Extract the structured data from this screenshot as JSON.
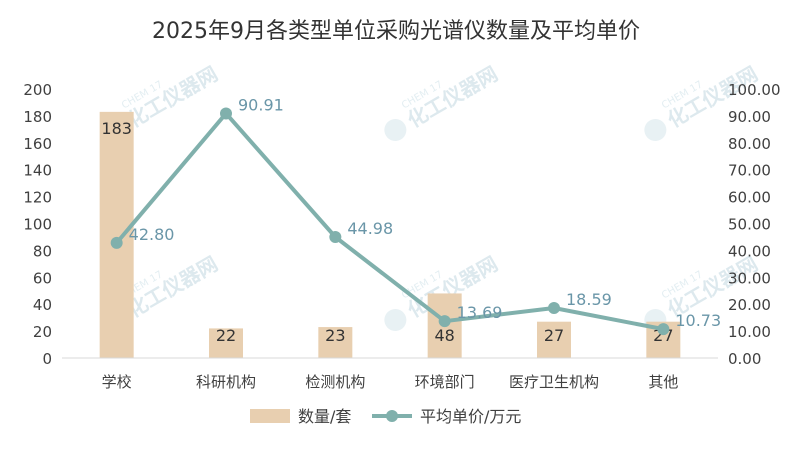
{
  "watermark": {
    "text": "化工仪器网",
    "sub": "CHEM 17"
  },
  "chart_data": {
    "type": "bar",
    "title": "2025年9月各类型单位采购光谱仪数量及平均单价",
    "categories": [
      "学校",
      "科研机构",
      "检测机构",
      "环境部门",
      "医疗卫生机构",
      "其他"
    ],
    "series": [
      {
        "name": "数量/套",
        "type": "bar",
        "axis": "left",
        "values": [
          183,
          22,
          23,
          48,
          27,
          27
        ],
        "color": "#e8cfb0"
      },
      {
        "name": "平均单价/万元",
        "type": "line",
        "axis": "right",
        "values": [
          42.8,
          90.91,
          44.98,
          13.69,
          18.59,
          10.73
        ],
        "color": "#80b0ac"
      }
    ],
    "y_left": {
      "min": 0,
      "max": 200,
      "step": 20,
      "ticks": [
        "0",
        "20",
        "40",
        "60",
        "80",
        "100",
        "120",
        "140",
        "160",
        "180",
        "200"
      ]
    },
    "y_right": {
      "min": 0,
      "max": 100,
      "step": 10,
      "ticks": [
        "0.00",
        "10.00",
        "20.00",
        "30.00",
        "40.00",
        "50.00",
        "60.00",
        "70.00",
        "80.00",
        "90.00",
        "100.00"
      ]
    },
    "bar_labels": [
      "183",
      "22",
      "23",
      "48",
      "27",
      "27"
    ],
    "line_labels": [
      "42.80",
      "90.91",
      "44.98",
      "13.69",
      "18.59",
      "10.73"
    ],
    "grid": false,
    "legend_position": "bottom"
  }
}
